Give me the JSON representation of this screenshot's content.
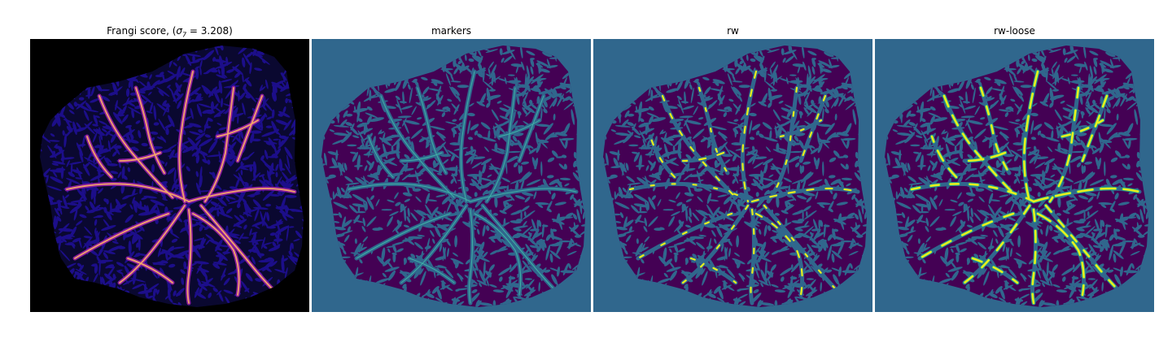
{
  "figure": {
    "panels": [
      {
        "id": "frangi",
        "title_prefix": "Frangi score, (",
        "title_sigma": "σ",
        "title_sub": "7",
        "title_suffix": " = 3.208)",
        "colors": {
          "background": "#000000",
          "texture": "#1c0e8a",
          "vessel_outer": "#8a1d9c",
          "vessel_inner": "#f2a46a"
        }
      },
      {
        "id": "markers",
        "title": "markers",
        "colors": {
          "background": "#30678d",
          "tissue": "#440154",
          "vessel": "#30678d",
          "line": "#3fb3a7"
        }
      },
      {
        "id": "rw",
        "title": "rw",
        "colors": {
          "background": "#30678d",
          "tissue": "#440154",
          "vessel": "#30678d",
          "highlight": "#e9f01c"
        }
      },
      {
        "id": "rw-loose",
        "title": "rw-loose",
        "colors": {
          "background": "#30678d",
          "tissue": "#440154",
          "vessel": "#30678d",
          "highlight": "#e9f01c"
        }
      }
    ]
  }
}
